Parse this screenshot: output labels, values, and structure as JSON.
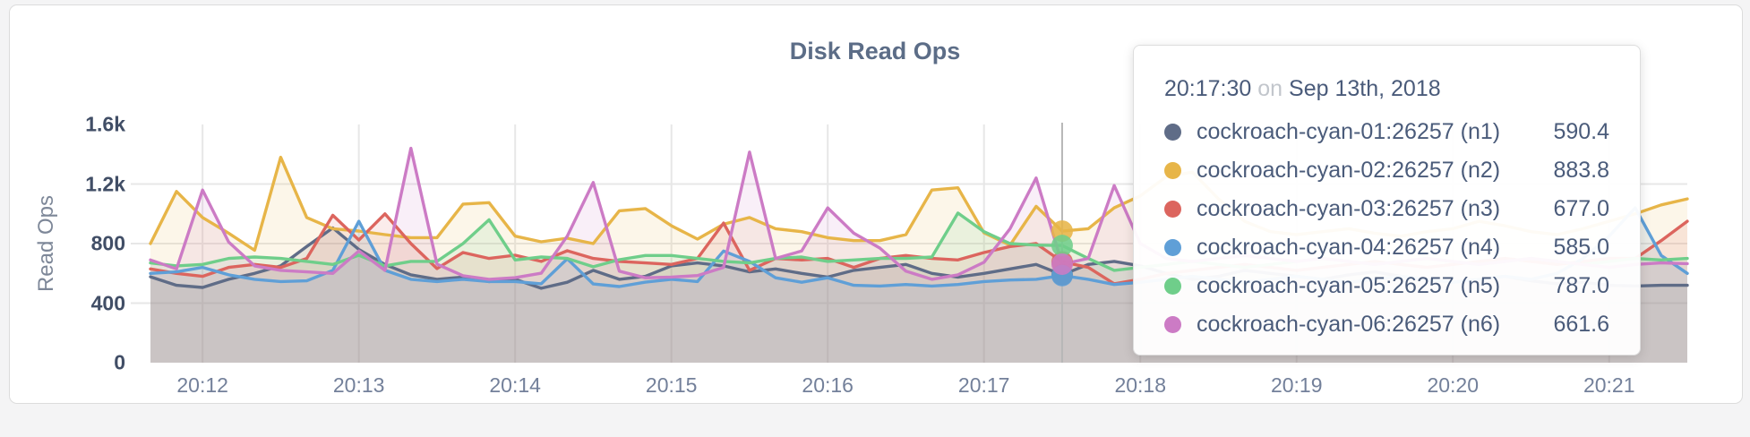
{
  "page": {
    "background_color": "#f4f4f5",
    "card_background_color": "#ffffff"
  },
  "chart": {
    "title": "Disk Read Ops",
    "y_axis_label": "Read Ops"
  },
  "chart_data": {
    "type": "line",
    "title": "Disk Read Ops",
    "ylabel": "Read Ops",
    "xlabel": "",
    "grid": true,
    "ylim": [
      0,
      1600
    ],
    "y_ticks": [
      {
        "label": "0",
        "value": 0
      },
      {
        "label": "400",
        "value": 400
      },
      {
        "label": "800",
        "value": 800
      },
      {
        "label": "1.2k",
        "value": 1200
      },
      {
        "label": "1.6k",
        "value": 1600
      }
    ],
    "x_ticks": [
      "20:12",
      "20:13",
      "20:14",
      "20:15",
      "20:16",
      "20:17",
      "20:18",
      "20:19",
      "20:20",
      "20:21"
    ],
    "x_start": "20:11:40",
    "x_interval_seconds": 10,
    "hover_index": 35,
    "hover_time": "20:17:30",
    "series": [
      {
        "name": "cockroach-cyan-01:26257 (n1)",
        "color": "#5F6C87",
        "values": [
          577,
          520,
          505,
          560,
          600,
          650,
          780,
          905,
          760,
          660,
          590,
          560,
          575,
          545,
          560,
          500,
          540,
          620,
          560,
          580,
          650,
          670,
          650,
          610,
          630,
          600,
          575,
          620,
          640,
          660,
          600,
          575,
          600,
          630,
          660,
          590.4,
          660,
          680,
          650,
          600,
          560,
          580,
          620,
          600,
          580,
          560,
          590,
          610,
          580,
          560,
          540,
          560,
          580,
          550,
          530,
          540,
          520,
          515,
          520,
          520
        ]
      },
      {
        "name": "cockroach-cyan-02:26257 (n2)",
        "color": "#E7B548",
        "values": [
          800,
          1150,
          975,
          870,
          755,
          1380,
          975,
          900,
          884,
          860,
          840,
          840,
          1065,
          1075,
          850,
          812,
          836,
          800,
          1020,
          1035,
          920,
          830,
          930,
          975,
          900,
          880,
          840,
          820,
          820,
          860,
          1160,
          1175,
          872,
          790,
          1050,
          883.8,
          900,
          1040,
          1120,
          1250,
          1280,
          1100,
          950,
          880,
          860,
          880,
          900,
          870,
          850,
          880,
          900,
          950,
          920,
          880,
          860,
          900,
          950,
          1000,
          1060,
          1100
        ]
      },
      {
        "name": "cockroach-cyan-03:26257 (n3)",
        "color": "#DC655E",
        "values": [
          630,
          600,
          580,
          640,
          660,
          640,
          700,
          990,
          824,
          1000,
          800,
          632,
          740,
          700,
          722,
          680,
          752,
          700,
          680,
          670,
          660,
          700,
          938,
          620,
          700,
          690,
          700,
          640,
          700,
          720,
          700,
          690,
          740,
          780,
          800,
          677,
          640,
          530,
          560,
          600,
          620,
          640,
          660,
          640,
          620,
          640,
          660,
          680,
          660,
          640,
          660,
          680,
          700,
          680,
          660,
          680,
          700,
          700,
          820,
          950
        ]
      },
      {
        "name": "cockroach-cyan-04:26257 (n4)",
        "color": "#5F9FD7",
        "values": [
          600,
          610,
          640,
          590,
          560,
          545,
          550,
          620,
          950,
          620,
          560,
          545,
          560,
          545,
          545,
          530,
          698,
          529,
          511,
          541,
          560,
          545,
          750,
          680,
          570,
          540,
          570,
          520,
          515,
          525,
          515,
          525,
          545,
          555,
          560,
          585,
          560,
          525,
          540,
          560,
          580,
          560,
          540,
          560,
          580,
          560,
          540,
          560,
          580,
          560,
          540,
          560,
          580,
          560,
          600,
          700,
          850,
          1040,
          720,
          600
        ]
      },
      {
        "name": "cockroach-cyan-05:26257 (n5)",
        "color": "#6FCE8A",
        "values": [
          670,
          650,
          660,
          700,
          710,
          700,
          680,
          660,
          722,
          650,
          680,
          680,
          800,
          960,
          690,
          710,
          700,
          644,
          692,
          720,
          720,
          700,
          680,
          670,
          700,
          710,
          680,
          690,
          700,
          700,
          710,
          1005,
          880,
          800,
          790,
          787,
          700,
          620,
          640,
          660,
          680,
          660,
          640,
          660,
          680,
          700,
          680,
          660,
          680,
          700,
          680,
          660,
          680,
          700,
          680,
          660,
          680,
          700,
          690,
          700
        ]
      },
      {
        "name": "cockroach-cyan-06:26257 (n6)",
        "color": "#CC7BC5",
        "values": [
          690,
          630,
          1160,
          810,
          650,
          620,
          610,
          600,
          750,
          620,
          1440,
          662,
          584,
          560,
          571,
          601,
          850,
          1210,
          615,
          570,
          575,
          585,
          640,
          1415,
          700,
          750,
          1040,
          870,
          770,
          615,
          560,
          590,
          674,
          900,
          1240,
          661.6,
          700,
          1190,
          800,
          700,
          680,
          700,
          720,
          700,
          680,
          700,
          680,
          660,
          680,
          700,
          680,
          660,
          680,
          700,
          680,
          660,
          640,
          660,
          670,
          665
        ]
      }
    ]
  },
  "tooltip": {
    "time": "20:17:30",
    "separator": "on",
    "date": "Sep 13th, 2018",
    "rows": [
      {
        "label": "cockroach-cyan-01:26257 (n1)",
        "value": "590.4",
        "color": "#5F6C87"
      },
      {
        "label": "cockroach-cyan-02:26257 (n2)",
        "value": "883.8",
        "color": "#E7B548"
      },
      {
        "label": "cockroach-cyan-03:26257 (n3)",
        "value": "677.0",
        "color": "#DC655E"
      },
      {
        "label": "cockroach-cyan-04:26257 (n4)",
        "value": "585.0",
        "color": "#5F9FD7"
      },
      {
        "label": "cockroach-cyan-05:26257 (n5)",
        "value": "787.0",
        "color": "#6FCE8A"
      },
      {
        "label": "cockroach-cyan-06:26257 (n6)",
        "value": "661.6",
        "color": "#CC7BC5"
      }
    ]
  },
  "style": {
    "gridline_color": "#e7e7e7",
    "hover_guideline_color": "#b7b7b7",
    "title_color": "#5c6d87",
    "y_tick_color": "#414e66",
    "x_tick_color": "#73809a"
  }
}
